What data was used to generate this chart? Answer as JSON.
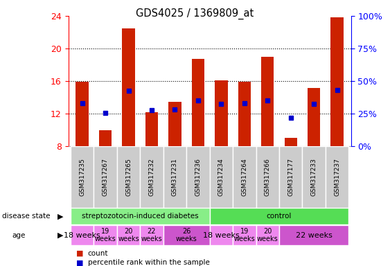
{
  "title": "GDS4025 / 1369809_at",
  "samples": [
    "GSM317235",
    "GSM317267",
    "GSM317265",
    "GSM317232",
    "GSM317231",
    "GSM317236",
    "GSM317234",
    "GSM317264",
    "GSM317266",
    "GSM317177",
    "GSM317233",
    "GSM317237"
  ],
  "count_values": [
    15.9,
    10.0,
    22.5,
    12.2,
    13.5,
    18.7,
    16.1,
    15.9,
    19.0,
    9.0,
    15.2,
    23.8
  ],
  "percentile_values": [
    13.3,
    12.1,
    14.8,
    12.4,
    12.5,
    13.6,
    13.2,
    13.3,
    13.6,
    11.5,
    13.2,
    14.9
  ],
  "count_baseline": 8.0,
  "ylim_left": [
    8,
    24
  ],
  "ylim_right": [
    0,
    100
  ],
  "yticks_left": [
    8,
    12,
    16,
    20,
    24
  ],
  "yticks_right": [
    0,
    25,
    50,
    75,
    100
  ],
  "ytick_labels_right": [
    "0%",
    "25%",
    "50%",
    "75%",
    "100%"
  ],
  "bar_color": "#cc2200",
  "percentile_color": "#0000cc",
  "bar_width": 0.55,
  "disease_state_groups": [
    {
      "label": "streptozotocin-induced diabetes",
      "start": 0,
      "end": 5,
      "color": "#88ee88"
    },
    {
      "label": "control",
      "start": 6,
      "end": 11,
      "color": "#55dd55"
    }
  ],
  "age_groups": [
    {
      "label": "18 weeks",
      "start": 0,
      "end": 0,
      "color": "#ee88ee",
      "fontsize": 8
    },
    {
      "label": "19\nweeks",
      "start": 1,
      "end": 1,
      "color": "#ee88ee",
      "fontsize": 7
    },
    {
      "label": "20\nweeks",
      "start": 2,
      "end": 2,
      "color": "#ee88ee",
      "fontsize": 7
    },
    {
      "label": "22\nweeks",
      "start": 3,
      "end": 3,
      "color": "#ee88ee",
      "fontsize": 7
    },
    {
      "label": "26\nweeks",
      "start": 4,
      "end": 5,
      "color": "#cc55cc",
      "fontsize": 7
    },
    {
      "label": "18 weeks",
      "start": 6,
      "end": 6,
      "color": "#ee88ee",
      "fontsize": 8
    },
    {
      "label": "19\nweeks",
      "start": 7,
      "end": 7,
      "color": "#ee88ee",
      "fontsize": 7
    },
    {
      "label": "20\nweeks",
      "start": 8,
      "end": 8,
      "color": "#ee88ee",
      "fontsize": 7
    },
    {
      "label": "22 weeks",
      "start": 9,
      "end": 11,
      "color": "#cc55cc",
      "fontsize": 8
    }
  ],
  "tick_bg_color": "#cccccc",
  "legend_count_label": "count",
  "legend_percentile_label": "percentile rank within the sample"
}
